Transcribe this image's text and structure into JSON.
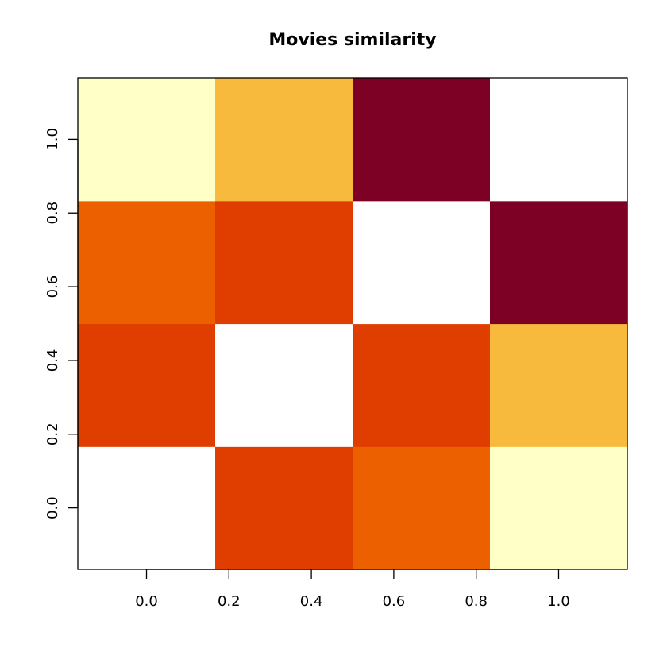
{
  "chart_data": {
    "type": "heatmap",
    "title": "Movies similarity",
    "xlabel": "",
    "ylabel": "",
    "x_ticks": [
      "0.0",
      "0.2",
      "0.4",
      "0.6",
      "0.8",
      "1.0"
    ],
    "y_ticks": [
      "0.0",
      "0.2",
      "0.4",
      "0.6",
      "0.8",
      "1.0"
    ],
    "xlim": [
      -0.1667,
      1.1667
    ],
    "ylim": [
      -0.1667,
      1.1667
    ],
    "n_cols": 4,
    "n_rows": 4,
    "palette": [
      "#FFFFC8",
      "#F7BA3C",
      "#EC6000",
      "#E03E00",
      "#7D0025",
      "#FFFFFF"
    ],
    "cells": [
      [
        5,
        3,
        2,
        0
      ],
      [
        3,
        5,
        3,
        1
      ],
      [
        2,
        3,
        5,
        4
      ],
      [
        0,
        1,
        4,
        5
      ]
    ],
    "grid": false,
    "legend": "none"
  }
}
